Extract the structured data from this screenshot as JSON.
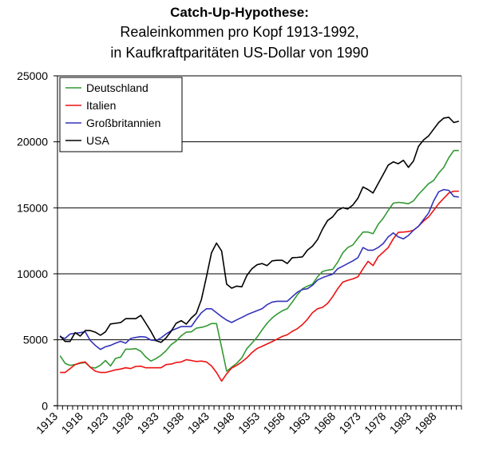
{
  "chart_data": {
    "type": "line",
    "title": "Catch-Up-Hypothese:",
    "subtitle_lines": [
      "Realeinkommen pro Kopf 1913-1992,",
      "in Kaufkraftparitäten US-Dollar von 1990"
    ],
    "xlabel": "",
    "ylabel": "",
    "x_start": 1913,
    "x_end": 1992,
    "x_tick_labels": [
      "1913",
      "1918",
      "1923",
      "1928",
      "1933",
      "1938",
      "1943",
      "1948",
      "1953",
      "1958",
      "1963",
      "1968",
      "1973",
      "1978",
      "1983",
      "1988"
    ],
    "ylim": [
      0,
      25000
    ],
    "y_ticks": [
      0,
      5000,
      10000,
      15000,
      20000,
      25000
    ],
    "y_tick_labels": [
      "0",
      "5000",
      "10000",
      "15000",
      "20000",
      "25000"
    ],
    "grid": "horizontal",
    "legend_position": "top-left",
    "series": [
      {
        "name": "Deutschland",
        "color": "#339933",
        "values": [
          3790,
          3220,
          3060,
          3120,
          3220,
          3280,
          2920,
          2860,
          3080,
          3430,
          3020,
          3590,
          3690,
          4290,
          4290,
          4330,
          4130,
          3690,
          3390,
          3570,
          3830,
          4170,
          4630,
          4900,
          5300,
          5580,
          5600,
          5880,
          5940,
          6040,
          6230,
          6230,
          4430,
          2620,
          2920,
          3220,
          3630,
          4330,
          4740,
          5180,
          5740,
          6250,
          6650,
          6950,
          7190,
          7350,
          7860,
          8400,
          8870,
          9070,
          9210,
          9770,
          10180,
          10280,
          10340,
          10880,
          11590,
          11990,
          12190,
          12690,
          13160,
          13160,
          13040,
          13740,
          14210,
          14810,
          15350,
          15410,
          15370,
          15310,
          15520,
          16020,
          16420,
          16830,
          17070,
          17630,
          18070,
          18800,
          19340,
          19340
        ]
      },
      {
        "name": "Italien",
        "color": "#ee1111",
        "values": [
          2520,
          2520,
          2820,
          3120,
          3260,
          3320,
          2920,
          2620,
          2520,
          2520,
          2620,
          2720,
          2780,
          2880,
          2820,
          2980,
          3000,
          2880,
          2880,
          2880,
          2880,
          3120,
          3160,
          3280,
          3320,
          3490,
          3430,
          3360,
          3390,
          3320,
          3020,
          2520,
          1870,
          2420,
          2860,
          3060,
          3320,
          3630,
          4030,
          4330,
          4500,
          4680,
          4860,
          5050,
          5250,
          5380,
          5640,
          5840,
          6150,
          6550,
          7050,
          7350,
          7460,
          7760,
          8260,
          8870,
          9370,
          9510,
          9610,
          9770,
          10380,
          10940,
          10620,
          11280,
          11630,
          11990,
          12650,
          13140,
          13160,
          13200,
          13300,
          13600,
          14000,
          14310,
          14810,
          15310,
          15720,
          16120,
          16260,
          16260
        ]
      },
      {
        "name": "Großbritannien",
        "color": "#3333bb",
        "values": [
          5240,
          5100,
          5440,
          5500,
          5540,
          5600,
          4940,
          4570,
          4270,
          4470,
          4570,
          4740,
          4880,
          4740,
          5100,
          5180,
          5240,
          5200,
          4980,
          4940,
          5140,
          5440,
          5680,
          5840,
          6000,
          6000,
          6000,
          6550,
          7050,
          7350,
          7350,
          7050,
          6750,
          6490,
          6310,
          6510,
          6690,
          6890,
          7050,
          7200,
          7350,
          7660,
          7860,
          7920,
          7920,
          7920,
          8260,
          8600,
          8810,
          8870,
          9130,
          9530,
          9710,
          9850,
          9970,
          10380,
          10580,
          10780,
          10980,
          11220,
          11990,
          11790,
          11790,
          11990,
          12290,
          12800,
          13100,
          12800,
          12650,
          12900,
          13300,
          13600,
          14110,
          14610,
          15520,
          16220,
          16380,
          16320,
          15860,
          15820
        ]
      },
      {
        "name": "USA",
        "color": "#000000",
        "values": [
          5300,
          4876,
          4876,
          5540,
          5280,
          5700,
          5700,
          5580,
          5340,
          5600,
          6200,
          6250,
          6300,
          6600,
          6600,
          6600,
          6850,
          6250,
          5640,
          4940,
          4800,
          5140,
          5640,
          6250,
          6450,
          6190,
          6650,
          7000,
          8060,
          9770,
          11590,
          12330,
          11730,
          9210,
          8910,
          9070,
          9010,
          9870,
          10380,
          10680,
          10780,
          10620,
          10980,
          11020,
          11020,
          10780,
          11220,
          11240,
          11280,
          11790,
          12090,
          12590,
          13400,
          14040,
          14310,
          14810,
          15010,
          14910,
          15210,
          15720,
          16580,
          16380,
          16120,
          16830,
          17530,
          18240,
          18480,
          18340,
          18600,
          18070,
          18540,
          19650,
          20150,
          20450,
          20960,
          21460,
          21800,
          21860,
          21460,
          21560
        ]
      }
    ]
  }
}
